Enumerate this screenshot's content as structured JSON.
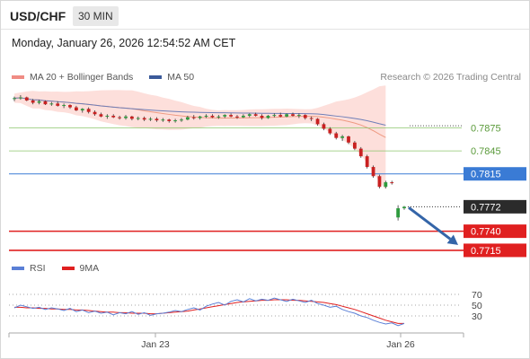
{
  "header": {
    "symbol": "USD/CHF",
    "interval": "30 MIN",
    "datetime": "Monday, January 26, 2026 12:54:52 AM CET"
  },
  "legend": {
    "items": [
      {
        "label": "MA 20 + Bollinger Bands",
        "color": "#f08c84"
      },
      {
        "label": "MA 50",
        "color": "#3b5a9a"
      }
    ],
    "copyright": "Research © 2026 Trading Central"
  },
  "colors": {
    "resistance": "#8bc56b",
    "pivot": "#3a7bd5",
    "support": "#e02020",
    "current": "#2b2b2b",
    "bull_candle": "#2e9b3e",
    "bear_candle": "#c92121",
    "ma50": "#6f7fb8",
    "ma20": "#ee9a82",
    "band_fill": "#fdd9d5",
    "arrow": "#3465a8",
    "rsi": "#5a7fd6",
    "rsi_ma": "#e02020"
  },
  "chart_data": [
    {
      "type": "candlestick",
      "x_ticks": [
        "Jan 23",
        "Jan 26"
      ],
      "levels": [
        {
          "label": "0.7875",
          "value": 0.7875,
          "kind": "resistance"
        },
        {
          "label": "0.7845",
          "value": 0.7845,
          "kind": "resistance"
        },
        {
          "label": "0.7815",
          "value": 0.7815,
          "kind": "pivot"
        },
        {
          "label": "0.7772",
          "value": 0.7772,
          "kind": "current"
        },
        {
          "label": "0.7740",
          "value": 0.774,
          "kind": "support"
        },
        {
          "label": "0.7715",
          "value": 0.7715,
          "kind": "support"
        }
      ],
      "ylim": [
        0.7702,
        0.7925
      ],
      "candles": [
        [
          0.7913,
          0.7916,
          0.791,
          0.7914
        ],
        [
          0.7914,
          0.7918,
          0.7912,
          0.7915
        ],
        [
          0.7915,
          0.7916,
          0.791,
          0.7911
        ],
        [
          0.7911,
          0.7913,
          0.7906,
          0.7908
        ],
        [
          0.7908,
          0.7912,
          0.7906,
          0.791
        ],
        [
          0.791,
          0.7911,
          0.7905,
          0.7906
        ],
        [
          0.7906,
          0.7909,
          0.7904,
          0.7907
        ],
        [
          0.7907,
          0.791,
          0.7903,
          0.7904
        ],
        [
          0.7904,
          0.7907,
          0.7901,
          0.7905
        ],
        [
          0.7905,
          0.7906,
          0.79,
          0.7902
        ],
        [
          0.7902,
          0.7904,
          0.7897,
          0.7898
        ],
        [
          0.7898,
          0.7901,
          0.7895,
          0.79
        ],
        [
          0.79,
          0.7902,
          0.7894,
          0.7896
        ],
        [
          0.7896,
          0.7898,
          0.7891,
          0.7893
        ],
        [
          0.7893,
          0.7895,
          0.7889,
          0.789
        ],
        [
          0.789,
          0.7893,
          0.7887,
          0.7891
        ],
        [
          0.7891,
          0.7893,
          0.7888,
          0.7889
        ],
        [
          0.7889,
          0.7891,
          0.7886,
          0.7888
        ],
        [
          0.7888,
          0.7892,
          0.7886,
          0.789
        ],
        [
          0.789,
          0.7891,
          0.7885,
          0.7887
        ],
        [
          0.7887,
          0.789,
          0.7885,
          0.7888
        ],
        [
          0.7888,
          0.789,
          0.7884,
          0.7886
        ],
        [
          0.7886,
          0.7889,
          0.7884,
          0.7887
        ],
        [
          0.7887,
          0.7889,
          0.7883,
          0.7885
        ],
        [
          0.7885,
          0.7888,
          0.7883,
          0.7886
        ],
        [
          0.7886,
          0.7887,
          0.7882,
          0.7884
        ],
        [
          0.7884,
          0.7887,
          0.7882,
          0.7885
        ],
        [
          0.7885,
          0.7888,
          0.7883,
          0.7886
        ],
        [
          0.7886,
          0.7891,
          0.7885,
          0.7889
        ],
        [
          0.7889,
          0.7892,
          0.7886,
          0.7888
        ],
        [
          0.7888,
          0.7891,
          0.7886,
          0.789
        ],
        [
          0.789,
          0.7893,
          0.7888,
          0.7891
        ],
        [
          0.7891,
          0.7893,
          0.7888,
          0.7889
        ],
        [
          0.7889,
          0.7892,
          0.7887,
          0.789
        ],
        [
          0.789,
          0.7893,
          0.7888,
          0.7892
        ],
        [
          0.7892,
          0.7894,
          0.7889,
          0.789
        ],
        [
          0.789,
          0.7892,
          0.7887,
          0.7889
        ],
        [
          0.7889,
          0.7893,
          0.7888,
          0.7891
        ],
        [
          0.7891,
          0.7894,
          0.7889,
          0.7893
        ],
        [
          0.7893,
          0.7895,
          0.789,
          0.7891
        ],
        [
          0.7891,
          0.7893,
          0.7886,
          0.7888
        ],
        [
          0.7888,
          0.7892,
          0.7887,
          0.7891
        ],
        [
          0.7891,
          0.7894,
          0.7889,
          0.7892
        ],
        [
          0.7892,
          0.7895,
          0.7889,
          0.789
        ],
        [
          0.789,
          0.7894,
          0.7889,
          0.7893
        ],
        [
          0.7893,
          0.7895,
          0.789,
          0.7891
        ],
        [
          0.7891,
          0.7894,
          0.7888,
          0.7892
        ],
        [
          0.7892,
          0.7893,
          0.7886,
          0.7888
        ],
        [
          0.7888,
          0.789,
          0.7884,
          0.7887
        ],
        [
          0.7887,
          0.7888,
          0.7878,
          0.788
        ],
        [
          0.788,
          0.7882,
          0.7872,
          0.7874
        ],
        [
          0.7874,
          0.7876,
          0.7866,
          0.7868
        ],
        [
          0.7868,
          0.787,
          0.786,
          0.7862
        ],
        [
          0.7862,
          0.7866,
          0.7858,
          0.7864
        ],
        [
          0.7864,
          0.7865,
          0.7854,
          0.7856
        ],
        [
          0.7856,
          0.7858,
          0.7846,
          0.7848
        ],
        [
          0.7848,
          0.785,
          0.7836,
          0.7838
        ],
        [
          0.7838,
          0.784,
          0.7822,
          0.7824
        ],
        [
          0.7824,
          0.7826,
          0.781,
          0.7812
        ],
        [
          0.7812,
          0.7814,
          0.7796,
          0.7798
        ],
        [
          0.7798,
          0.7806,
          0.7796,
          0.7804
        ],
        [
          0.7804,
          0.7806,
          0.7801,
          0.7803
        ],
        [
          0.7758,
          0.7774,
          0.7754,
          0.777
        ],
        [
          0.777,
          0.7773,
          0.7768,
          0.7772
        ]
      ],
      "ma20_gap_after_index": 60
    },
    {
      "type": "line",
      "legend": [
        "RSI",
        "9MA"
      ],
      "y_ticks": [
        70,
        50,
        30
      ],
      "ylim": [
        0,
        100
      ],
      "rsi": [
        45,
        50,
        47,
        44,
        46,
        42,
        45,
        43,
        40,
        44,
        38,
        41,
        36,
        39,
        35,
        37,
        32,
        36,
        34,
        38,
        33,
        36,
        31,
        34,
        35,
        37,
        40,
        38,
        42,
        45,
        41,
        48,
        52,
        55,
        50,
        57,
        60,
        56,
        62,
        58,
        61,
        59,
        63,
        60,
        57,
        61,
        58,
        55,
        59,
        53,
        50,
        46,
        48,
        42,
        38,
        35,
        30,
        27,
        22,
        18,
        15,
        17,
        12,
        16
      ],
      "rsi_ma": [
        46,
        46,
        45,
        45,
        44,
        44,
        43,
        43,
        42,
        42,
        41,
        41,
        40,
        39,
        38,
        37,
        37,
        36,
        36,
        35,
        35,
        35,
        34,
        34,
        35,
        36,
        37,
        38,
        39,
        41,
        43,
        45,
        47,
        49,
        51,
        53,
        55,
        56,
        57,
        58,
        59,
        59,
        60,
        60,
        60,
        59,
        59,
        58,
        57,
        56,
        55,
        53,
        51,
        48,
        45,
        42,
        38,
        34,
        30,
        26,
        22,
        19,
        16,
        16
      ]
    }
  ]
}
